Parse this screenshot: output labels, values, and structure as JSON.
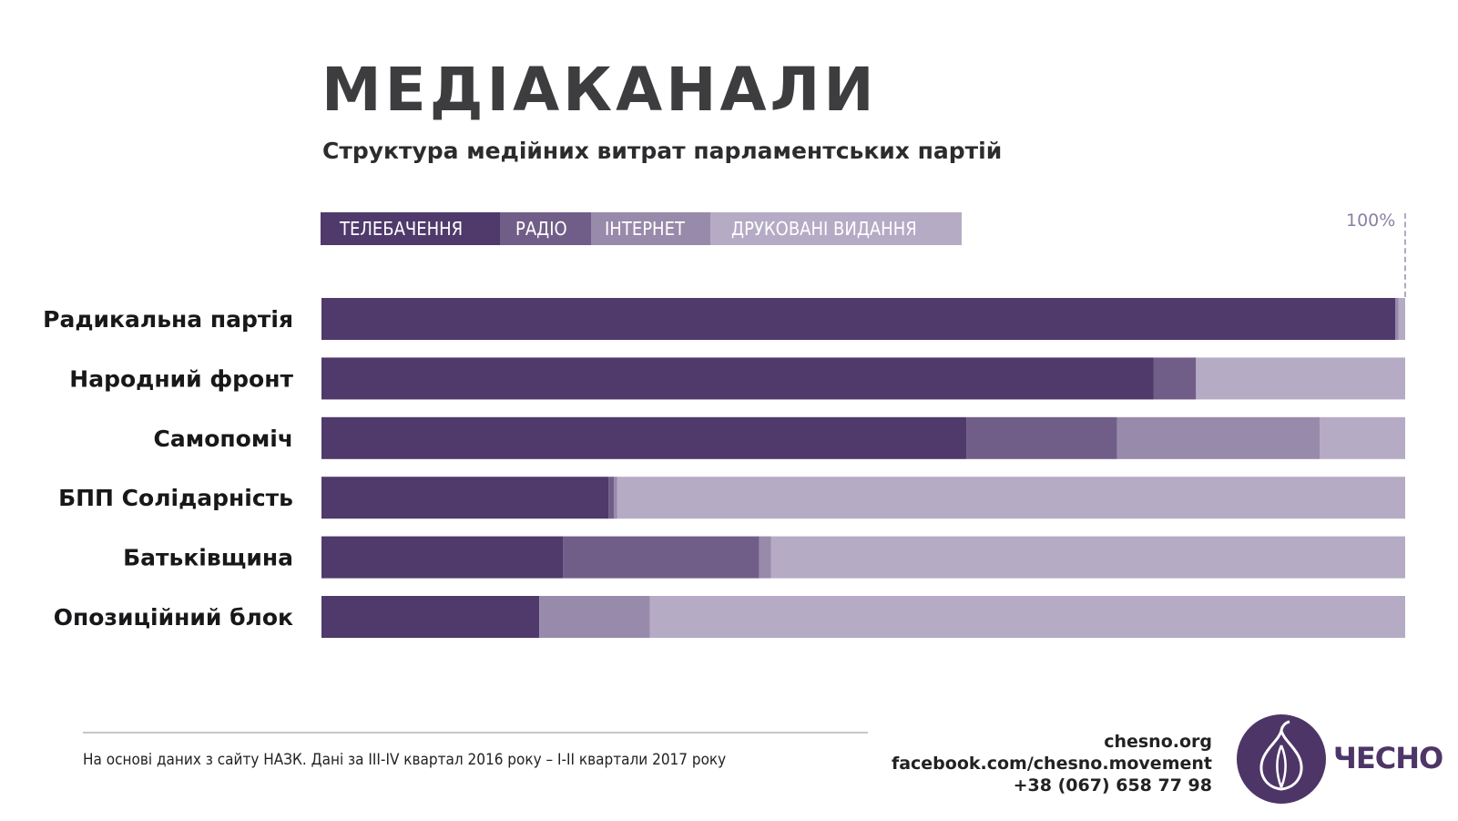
{
  "header": {
    "title": "МЕДІАКАНАЛИ",
    "subtitle": "Структура медійних витрат парламентських партій"
  },
  "legend": [
    {
      "label": "ТЕЛЕБАЧЕННЯ",
      "color": "#4f3a6b"
    },
    {
      "label": "РАДІО",
      "color": "#715e88"
    },
    {
      "label": "ІНТЕРНЕТ",
      "color": "#988aaa"
    },
    {
      "label": "ДРУКОВАНІ ВИДАННЯ",
      "color": "#b5abc5"
    }
  ],
  "reference_label": "100%",
  "chart_data": {
    "type": "bar",
    "orientation": "horizontal",
    "stacked": true,
    "title": "МЕДІАКАНАЛИ",
    "subtitle": "Структура медійних витрат парламентських партій",
    "unit": "%",
    "xlim": [
      0,
      100
    ],
    "legend_position": "top",
    "categories": [
      "Радикальна партія",
      "Народний фронт",
      "Самопоміч",
      "БПП Солідарність",
      "Батьківщина",
      "Опозиційний блок"
    ],
    "series": [
      {
        "name": "ТЕЛЕБАЧЕННЯ",
        "color": "#4f3a6b",
        "values": [
          99.1,
          76.8,
          59.5,
          26.5,
          22.3,
          20.1
        ]
      },
      {
        "name": "РАДІО",
        "color": "#715e88",
        "values": [
          0,
          3.9,
          13.9,
          0.5,
          18.1,
          0
        ]
      },
      {
        "name": "ІНТЕРНЕТ",
        "color": "#988aaa",
        "values": [
          0.3,
          0,
          18.7,
          0.3,
          1.1,
          10.2
        ]
      },
      {
        "name": "ДРУКОВАНІ ВИДАННЯ",
        "color": "#b5abc5",
        "values": [
          0.6,
          19.3,
          7.9,
          72.7,
          58.5,
          69.7
        ]
      }
    ]
  },
  "footer": {
    "source": "На основі даних з сайту НАЗК. Дані за III-IV квартал 2016 року – I-II квартали 2017 року",
    "site": "chesno.org",
    "facebook": "facebook.com/chesno.movement",
    "phone": "+38 (067) 658 77 98",
    "logo_text": "ЧЕСНО",
    "brand_color": "#4e3567"
  }
}
